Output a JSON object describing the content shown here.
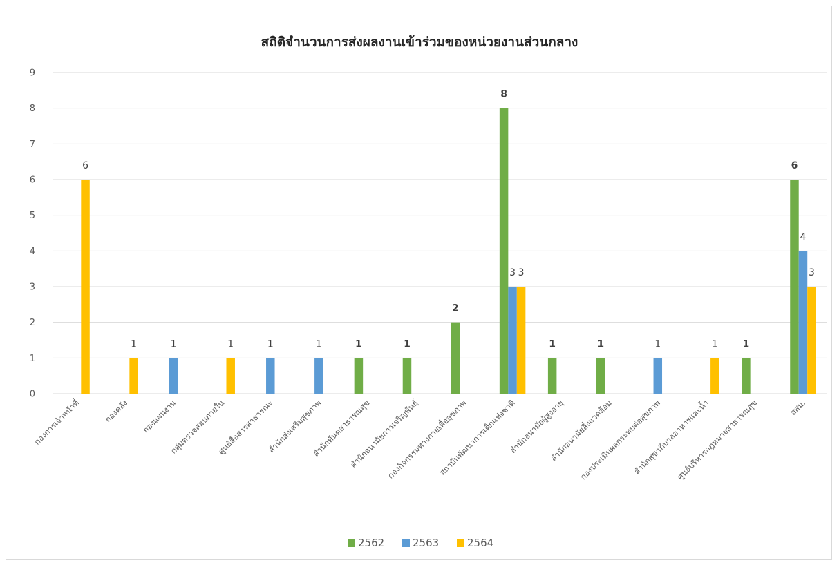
{
  "chart_data": {
    "type": "bar",
    "title": "สถิติจำนวนการส่งผลงานเข้าร่วมของหน่วยงานส่วนกลาง",
    "xlabel": "",
    "ylabel": "",
    "ylim": [
      0,
      9
    ],
    "yticks": [
      0,
      1,
      2,
      3,
      4,
      5,
      6,
      7,
      8,
      9
    ],
    "grid": true,
    "legend_position": "bottom",
    "categories": [
      "กองการเจ้าหน้าที่",
      "กองคลัง",
      "กองแผนงาน",
      "กลุ่มตรวจสอบภายใน",
      "ศูนย์สื่อสารสาธารณะ",
      "สำนักส่งเสริมสุขภาพ",
      "สำนักทันตสาธารณสุข",
      "สำนักอนามัยการเจริญพันธุ์",
      "กองกิจกรรมทางกายเพื่อสุขภาพ",
      "สถาบันพัฒนาการเด็กแห่งชาติ",
      "สำนักอนามัยผู้สูงอายุ",
      "สำนักอนามัยสิ่งแวดล้อม",
      "กองประเมินผลกระทบต่อสุขภาพ",
      "สำนักสุขาภิบาลอาหารและน้ำ",
      "ศูนย์บริหารกฎหมายสาธารณสุข",
      "สสม."
    ],
    "series": [
      {
        "name": "2562",
        "color": "#70ad47",
        "values": [
          null,
          null,
          null,
          null,
          null,
          null,
          1,
          1,
          2,
          8,
          1,
          1,
          null,
          null,
          1,
          6
        ]
      },
      {
        "name": "2563",
        "color": "#5b9bd5",
        "values": [
          null,
          null,
          1,
          null,
          1,
          1,
          null,
          null,
          null,
          3,
          null,
          null,
          1,
          null,
          null,
          4
        ]
      },
      {
        "name": "2564",
        "color": "#ffc000",
        "values": [
          6,
          1,
          null,
          1,
          null,
          null,
          null,
          null,
          null,
          3,
          null,
          null,
          null,
          1,
          null,
          3
        ]
      }
    ]
  }
}
